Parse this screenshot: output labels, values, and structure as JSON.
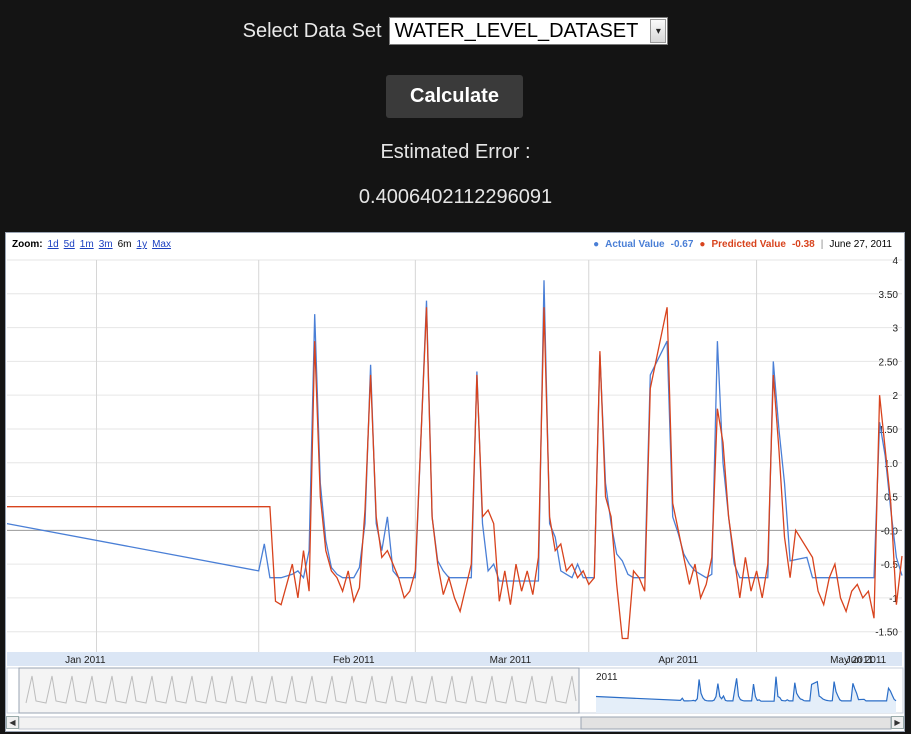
{
  "controls": {
    "dataset_label": "Select Data Set",
    "dataset_selected": "WATER_LEVEL_DATASET",
    "calculate_label": "Calculate",
    "error_label": "Estimated Error :",
    "error_value": "0.4006402112296091"
  },
  "chart_toolbar": {
    "zoom_label": "Zoom:",
    "zoom_options": [
      "1d",
      "5d",
      "1m",
      "3m",
      "6m",
      "1y",
      "Max"
    ],
    "zoom_active": "6m"
  },
  "legend": {
    "actual": {
      "label": "Actual Value",
      "value": "-0.67",
      "color": "#4a7fd6"
    },
    "predicted": {
      "label": "Predicted Value",
      "value": "-0.38",
      "color": "#d8431d"
    },
    "date": "June 27, 2011"
  },
  "navigator": {
    "year_label": "2011"
  },
  "chart_data": {
    "type": "line",
    "x_labels": [
      "Jan 2011",
      "Feb 2011",
      "Mar 2011",
      "Apr 2011",
      "May 2011",
      "Jun 2011"
    ],
    "y_tick_labels": [
      "4",
      "3.50",
      "3",
      "2.50",
      "2",
      "1.50",
      "1.0",
      "0.5",
      "-0.0",
      "-0.5",
      "-1",
      "-1.50"
    ],
    "ylim": [
      -1.8,
      4
    ],
    "grid": true,
    "legend_position": "top-right",
    "series": [
      {
        "name": "Actual Value",
        "color": "#4a7fd6",
        "points": [
          [
            -76,
            0.1
          ],
          [
            -31,
            -0.6
          ],
          [
            -30,
            -0.2
          ],
          [
            -29,
            -0.7
          ],
          [
            -27,
            -0.7
          ],
          [
            -25,
            -0.65
          ],
          [
            -24,
            -0.6
          ],
          [
            -23,
            -0.7
          ],
          [
            -22,
            -0.3
          ],
          [
            -21,
            3.2
          ],
          [
            -20,
            0.7
          ],
          [
            -19,
            -0.15
          ],
          [
            -18,
            -0.55
          ],
          [
            -17,
            -0.65
          ],
          [
            -16,
            -0.7
          ],
          [
            -15,
            -0.7
          ],
          [
            -14,
            -0.7
          ],
          [
            -13,
            -0.55
          ],
          [
            -12,
            0.1
          ],
          [
            -11,
            2.45
          ],
          [
            -10,
            0.1
          ],
          [
            -9,
            -0.3
          ],
          [
            -8,
            0.2
          ],
          [
            -7,
            -0.6
          ],
          [
            -6,
            -0.7
          ],
          [
            -5,
            -0.7
          ],
          [
            -4,
            -0.7
          ],
          [
            -3,
            -0.7
          ],
          [
            -1,
            3.4
          ],
          [
            0,
            0.2
          ],
          [
            1,
            -0.45
          ],
          [
            2,
            -0.6
          ],
          [
            3,
            -0.7
          ],
          [
            5,
            -0.7
          ],
          [
            7,
            -0.7
          ],
          [
            8,
            2.35
          ],
          [
            9,
            0.1
          ],
          [
            10,
            -0.6
          ],
          [
            11,
            -0.5
          ],
          [
            12,
            -0.75
          ],
          [
            14,
            -0.75
          ],
          [
            16,
            -0.75
          ],
          [
            18,
            -0.75
          ],
          [
            19,
            -0.75
          ],
          [
            20,
            3.7
          ],
          [
            21,
            0.1
          ],
          [
            22,
            -0.1
          ],
          [
            23,
            -0.6
          ],
          [
            24,
            -0.65
          ],
          [
            25,
            -0.7
          ],
          [
            26,
            -0.5
          ],
          [
            27,
            -0.7
          ],
          [
            28,
            -0.7
          ],
          [
            29,
            -0.7
          ],
          [
            30,
            2.6
          ],
          [
            31,
            0.7
          ],
          [
            32,
            0.1
          ],
          [
            33,
            -0.35
          ],
          [
            34,
            -0.45
          ],
          [
            35,
            -0.65
          ],
          [
            36,
            -0.7
          ],
          [
            37,
            -0.7
          ],
          [
            38,
            -0.7
          ],
          [
            39,
            2.3
          ],
          [
            42,
            2.8
          ],
          [
            43,
            0.2
          ],
          [
            44,
            -0.05
          ],
          [
            45,
            -0.35
          ],
          [
            46,
            -0.5
          ],
          [
            47,
            -0.6
          ],
          [
            48,
            -0.65
          ],
          [
            49,
            -0.7
          ],
          [
            50,
            -0.65
          ],
          [
            51,
            2.8
          ],
          [
            52,
            1.0
          ],
          [
            53,
            0.2
          ],
          [
            54,
            -0.5
          ],
          [
            55,
            -0.7
          ],
          [
            58,
            -0.7
          ],
          [
            60,
            -0.7
          ],
          [
            61,
            2.5
          ],
          [
            62,
            1.5
          ],
          [
            63,
            0.7
          ],
          [
            64,
            -0.45
          ],
          [
            67,
            -0.4
          ],
          [
            68,
            -0.7
          ],
          [
            70,
            -0.7
          ],
          [
            72,
            -0.7
          ],
          [
            74,
            -0.7
          ],
          [
            76,
            -0.7
          ],
          [
            78,
            -0.7
          ],
          [
            79,
            -0.7
          ],
          [
            80,
            1.6
          ],
          [
            81,
            1.1
          ],
          [
            82,
            0.3
          ],
          [
            83,
            -0.4
          ],
          [
            84,
            -0.67
          ]
        ]
      },
      {
        "name": "Predicted Value",
        "color": "#d8431d",
        "points": [
          [
            -76,
            0.35
          ],
          [
            -29,
            0.35
          ],
          [
            -28,
            -1.05
          ],
          [
            -27,
            -1.1
          ],
          [
            -26,
            -0.8
          ],
          [
            -25,
            -0.5
          ],
          [
            -24,
            -1.0
          ],
          [
            -23,
            -0.3
          ],
          [
            -22,
            -0.9
          ],
          [
            -21,
            2.8
          ],
          [
            -20,
            0.5
          ],
          [
            -19,
            -0.3
          ],
          [
            -18,
            -0.6
          ],
          [
            -17,
            -0.7
          ],
          [
            -16,
            -0.9
          ],
          [
            -15,
            -0.6
          ],
          [
            -14,
            -1.05
          ],
          [
            -13,
            -0.85
          ],
          [
            -12,
            0.3
          ],
          [
            -11,
            2.3
          ],
          [
            -10,
            0.2
          ],
          [
            -9,
            -0.4
          ],
          [
            -8,
            -0.3
          ],
          [
            -7,
            -0.5
          ],
          [
            -6,
            -0.7
          ],
          [
            -5,
            -1.0
          ],
          [
            -4,
            -0.9
          ],
          [
            -3,
            -0.6
          ],
          [
            -1,
            3.3
          ],
          [
            0,
            0.2
          ],
          [
            1,
            -0.5
          ],
          [
            2,
            -0.95
          ],
          [
            3,
            -0.7
          ],
          [
            4,
            -1.0
          ],
          [
            5,
            -1.2
          ],
          [
            7,
            -0.5
          ],
          [
            8,
            2.3
          ],
          [
            9,
            0.2
          ],
          [
            10,
            0.3
          ],
          [
            11,
            0.1
          ],
          [
            12,
            -1.05
          ],
          [
            13,
            -0.6
          ],
          [
            14,
            -1.1
          ],
          [
            15,
            -0.5
          ],
          [
            16,
            -0.9
          ],
          [
            17,
            -0.6
          ],
          [
            18,
            -0.95
          ],
          [
            19,
            -0.4
          ],
          [
            20,
            3.3
          ],
          [
            21,
            0.2
          ],
          [
            22,
            -0.3
          ],
          [
            23,
            -0.2
          ],
          [
            24,
            -0.6
          ],
          [
            25,
            -0.5
          ],
          [
            26,
            -0.7
          ],
          [
            27,
            -0.6
          ],
          [
            28,
            -0.8
          ],
          [
            29,
            -0.7
          ],
          [
            30,
            2.65
          ],
          [
            31,
            0.5
          ],
          [
            32,
            0.2
          ],
          [
            33,
            -0.8
          ],
          [
            34,
            -1.6
          ],
          [
            35,
            -1.6
          ],
          [
            36,
            -0.6
          ],
          [
            37,
            -0.7
          ],
          [
            38,
            -0.9
          ],
          [
            39,
            2.1
          ],
          [
            42,
            3.3
          ],
          [
            43,
            0.4
          ],
          [
            44,
            0.0
          ],
          [
            45,
            -0.4
          ],
          [
            46,
            -0.8
          ],
          [
            47,
            -0.5
          ],
          [
            48,
            -1.0
          ],
          [
            49,
            -0.8
          ],
          [
            50,
            -0.4
          ],
          [
            51,
            1.8
          ],
          [
            52,
            1.3
          ],
          [
            53,
            0.2
          ],
          [
            54,
            -0.4
          ],
          [
            55,
            -1.0
          ],
          [
            56,
            -0.4
          ],
          [
            57,
            -0.9
          ],
          [
            58,
            -0.6
          ],
          [
            59,
            -1.0
          ],
          [
            60,
            -0.5
          ],
          [
            61,
            2.3
          ],
          [
            62,
            1.2
          ],
          [
            63,
            -0.1
          ],
          [
            64,
            -0.7
          ],
          [
            65,
            0.0
          ],
          [
            68,
            -0.4
          ],
          [
            69,
            -0.9
          ],
          [
            70,
            -1.1
          ],
          [
            71,
            -0.7
          ],
          [
            72,
            -0.5
          ],
          [
            73,
            -1.0
          ],
          [
            74,
            -1.2
          ],
          [
            75,
            -0.9
          ],
          [
            76,
            -0.8
          ],
          [
            77,
            -1.0
          ],
          [
            78,
            -0.9
          ],
          [
            79,
            -1.3
          ],
          [
            80,
            2.0
          ],
          [
            81,
            1.2
          ],
          [
            82,
            0.4
          ],
          [
            83,
            -1.1
          ],
          [
            84,
            -0.38
          ]
        ]
      }
    ]
  }
}
